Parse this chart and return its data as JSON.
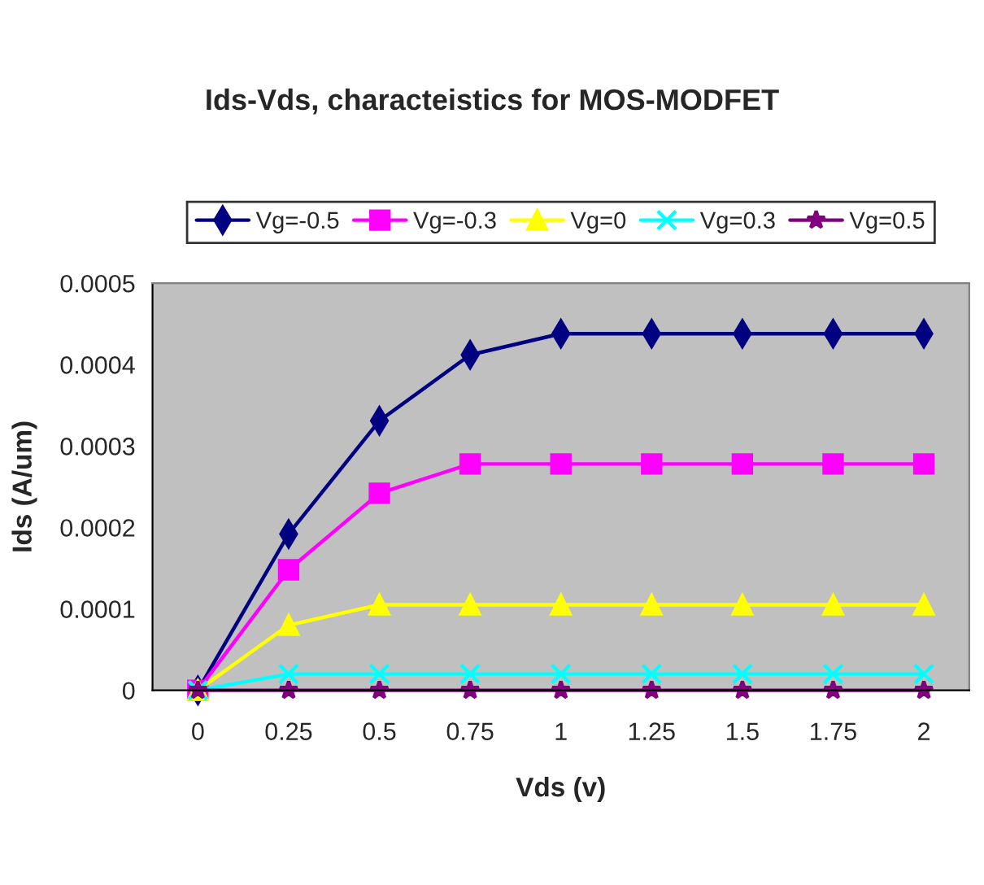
{
  "chart_data": {
    "type": "line",
    "title": "Ids-Vds, characteistics for MOS-MODFET",
    "xlabel": "Vds (v)",
    "ylabel": "Ids (A/um)",
    "categories": [
      "0",
      "0.25",
      "0.5",
      "0.75",
      "1",
      "1.25",
      "1.5",
      "1.75",
      "2"
    ],
    "series": [
      {
        "name": "Vg=-0.5",
        "color": "#000080",
        "marker": "diamond",
        "values": [
          0,
          0.000192,
          0.000331,
          0.000412,
          0.000438,
          0.000438,
          0.000438,
          0.000438,
          0.000438
        ]
      },
      {
        "name": "Vg=-0.3",
        "color": "#ff00ff",
        "marker": "square",
        "values": [
          0,
          0.000148,
          0.000242,
          0.000278,
          0.000278,
          0.000278,
          0.000278,
          0.000278,
          0.000278
        ]
      },
      {
        "name": "Vg=0",
        "color": "#ffff00",
        "marker": "triangle",
        "values": [
          0,
          8e-05,
          0.000105,
          0.000105,
          0.000105,
          0.000105,
          0.000105,
          0.000105,
          0.000105
        ]
      },
      {
        "name": "Vg=0.3",
        "color": "#00ffff",
        "marker": "cross",
        "values": [
          0,
          2e-05,
          2e-05,
          2e-05,
          2e-05,
          2e-05,
          2e-05,
          2e-05,
          2e-05
        ]
      },
      {
        "name": "Vg=0.5",
        "color": "#800080",
        "marker": "star",
        "values": [
          0,
          0,
          0,
          0,
          0,
          0,
          0,
          0,
          0
        ]
      }
    ],
    "ylim": [
      0,
      0.0005
    ],
    "yticks": [
      0,
      0.0001,
      0.0002,
      0.0003,
      0.0004,
      0.0005
    ],
    "grid": false,
    "legend": "top",
    "line_style": "solid"
  }
}
